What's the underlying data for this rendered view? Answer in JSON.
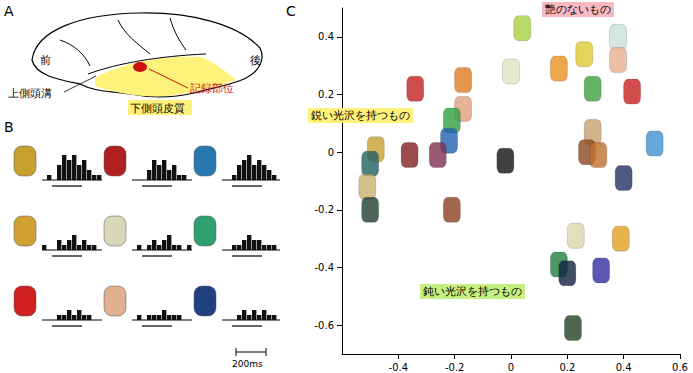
{
  "panels": {
    "A": {
      "label": "A",
      "front": "前",
      "back": "後",
      "sulcus": "上側頭溝",
      "region": "下側頭皮質",
      "site": "記録部位"
    },
    "B": {
      "label": "B",
      "scale_bar": "200ms",
      "cells": [
        {
          "color": "#c8a030",
          "histogram": [
            0,
            1,
            0,
            3,
            5,
            4,
            5,
            3,
            4,
            2,
            1,
            1
          ]
        },
        {
          "color": "#b02020",
          "histogram": [
            0,
            0,
            0,
            2,
            4,
            3,
            4,
            2,
            3,
            1,
            1,
            0
          ]
        },
        {
          "color": "#2878b0",
          "histogram": [
            0,
            0,
            1,
            3,
            4,
            5,
            3,
            4,
            3,
            2,
            1,
            0
          ]
        },
        {
          "color": "#d0a030",
          "histogram": [
            1,
            0,
            0,
            2,
            1,
            2,
            3,
            1,
            2,
            1,
            1,
            0
          ]
        },
        {
          "color": "#d8d8b8",
          "histogram": [
            0,
            1,
            0,
            1,
            2,
            1,
            2,
            3,
            1,
            1,
            0,
            1
          ]
        },
        {
          "color": "#30a070",
          "histogram": [
            0,
            0,
            1,
            1,
            2,
            3,
            2,
            2,
            1,
            1,
            1,
            0
          ]
        },
        {
          "color": "#d02020",
          "histogram": [
            0,
            0,
            0,
            1,
            1,
            2,
            1,
            2,
            1,
            1,
            0,
            0
          ]
        },
        {
          "color": "#e0b090",
          "histogram": [
            0,
            1,
            0,
            1,
            1,
            1,
            2,
            1,
            1,
            1,
            0,
            0
          ]
        },
        {
          "color": "#204080",
          "histogram": [
            0,
            0,
            0,
            1,
            2,
            1,
            2,
            1,
            2,
            1,
            1,
            0
          ]
        }
      ]
    }
  },
  "chart_data": {
    "label": "C",
    "type": "scatter",
    "marker": "roundRect",
    "xlim": [
      -0.6,
      0.6
    ],
    "xticks": [
      -0.4,
      -0.2,
      0,
      0.2,
      0.4,
      0.6
    ],
    "ylim": [
      -0.7,
      0.5
    ],
    "yticks": [
      -0.6,
      -0.4,
      -0.2,
      0,
      0.2,
      0.4
    ],
    "annotations": [
      "艶のないもの",
      "鋭い光沢を持つもの",
      "鈍い光沢を持つもの"
    ],
    "x": [
      0.04,
      0.0,
      0.26,
      0.38,
      0.17,
      0.38,
      0.29,
      0.43,
      -0.34,
      -0.17,
      -0.17,
      -0.21,
      -0.22,
      -0.48,
      -0.5,
      -0.36,
      -0.26,
      -0.51,
      -0.5,
      -0.02,
      -0.21,
      0.29,
      0.27,
      0.31,
      0.51,
      0.4,
      0.23,
      0.39,
      0.17,
      0.2,
      0.32,
      0.22
    ],
    "y": [
      0.43,
      0.28,
      0.34,
      0.4,
      0.29,
      0.32,
      0.22,
      0.21,
      0.22,
      0.25,
      0.15,
      0.11,
      0.04,
      0.01,
      -0.04,
      -0.01,
      -0.01,
      -0.12,
      -0.2,
      -0.03,
      -0.2,
      0.07,
      0.0,
      -0.01,
      0.03,
      -0.09,
      -0.29,
      -0.3,
      -0.39,
      -0.42,
      -0.41,
      -0.61
    ],
    "colors": [
      "#a8d040",
      "#e0e6c0",
      "#e0c830",
      "#c8e0d8",
      "#e8901c",
      "#e8b090",
      "#40a040",
      "#c82020",
      "#c02020",
      "#e07a20",
      "#e0a080",
      "#30a040",
      "#2060b0",
      "#c8a030",
      "#206060",
      "#802020",
      "#803050",
      "#c8b070",
      "#204030",
      "#101010",
      "#8a4020",
      "#c8a070",
      "#8a4a20",
      "#c07030",
      "#4090d0",
      "#203060",
      "#d8d8b0",
      "#e0a020",
      "#208040",
      "#102040",
      "#3030a0",
      "#204020"
    ]
  }
}
